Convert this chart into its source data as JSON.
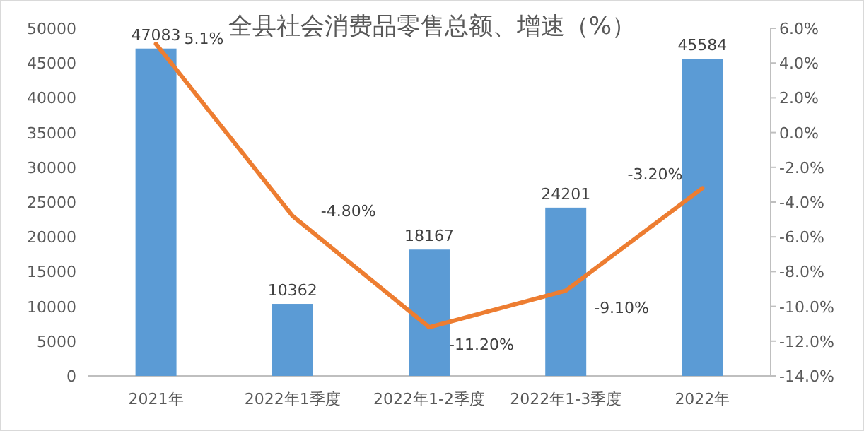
{
  "chart_data": {
    "type": "bar",
    "title": "全县社会消费品零售总额、增速（%）",
    "categories": [
      "2021年",
      "2022年1季度",
      "2022年1-2季度",
      "2022年1-3季度",
      "2022年"
    ],
    "series": [
      {
        "color": "#5b9bd5",
        "values": [
          47083,
          10362,
          18167,
          24201,
          45584
        ]
      },
      {
        "type": "line",
        "axis": "y2",
        "color": "#ed7d31",
        "values": [
          5.1,
          -4.8,
          -11.2,
          -9.1,
          -3.2
        ],
        "value_labels": [
          "5.1%",
          "-4.80%",
          "-11.20%",
          "-9.10%",
          "-3.20%"
        ]
      }
    ],
    "data_labels": true,
    "ylim": [
      0,
      50000
    ],
    "yticks": [
      0,
      5000,
      10000,
      15000,
      20000,
      25000,
      30000,
      35000,
      40000,
      45000,
      50000
    ],
    "y2lim": [
      -14,
      6
    ],
    "y2ticks": [
      {
        "value": 6,
        "label": "6.0%"
      },
      {
        "value": 4,
        "label": "4.0%"
      },
      {
        "value": 2,
        "label": "2.0%"
      },
      {
        "value": 0,
        "label": "0.0%"
      },
      {
        "value": -2,
        "label": "-2.0%"
      },
      {
        "value": -4,
        "label": "-4.0%"
      },
      {
        "value": -6,
        "label": "-6.0%"
      },
      {
        "value": -8,
        "label": "-8.0%"
      },
      {
        "value": -10,
        "label": "-10.0%"
      },
      {
        "value": -12,
        "label": "-12.0%"
      },
      {
        "value": -14,
        "label": "-14.0%"
      }
    ],
    "grid": false
  }
}
